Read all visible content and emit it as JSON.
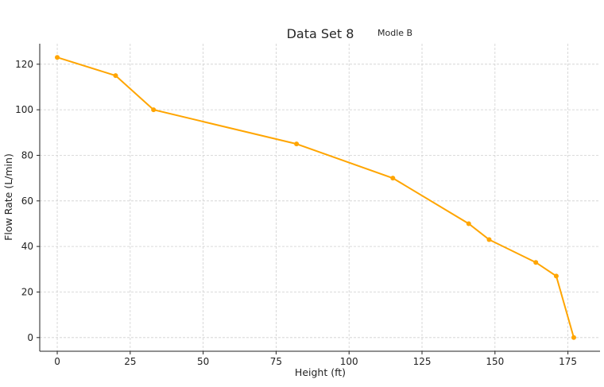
{
  "chart_data": {
    "type": "line",
    "title": "Data Set 8",
    "subtitle": "Modle B",
    "xlabel": "Height (ft)",
    "ylabel": "Flow Rate (L/min)",
    "xlim": [
      -6,
      186
    ],
    "ylim": [
      -6,
      129
    ],
    "xticks": [
      0,
      25,
      50,
      75,
      100,
      125,
      150,
      175
    ],
    "yticks": [
      0,
      20,
      40,
      60,
      80,
      100,
      120
    ],
    "grid": true,
    "series": [
      {
        "color": "#FFA500",
        "x": [
          0,
          20,
          33,
          82,
          115,
          141,
          148,
          164,
          171,
          177
        ],
        "y": [
          123,
          115,
          100,
          85,
          70,
          50,
          43,
          33,
          27,
          0
        ]
      }
    ]
  }
}
